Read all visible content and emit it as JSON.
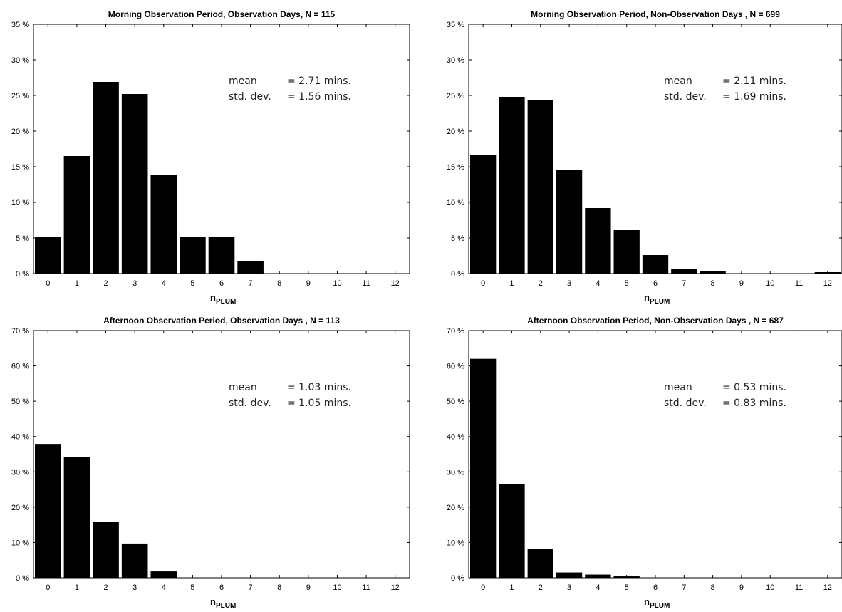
{
  "chart_data": [
    {
      "type": "bar",
      "title": "Morning Observation Period, Observation Days, N = 115",
      "xlabel_main": "n",
      "xlabel_sub": "PLUM",
      "ylabel": "",
      "categories": [
        "0",
        "1",
        "2",
        "3",
        "4",
        "5",
        "6",
        "7",
        "8",
        "9",
        "10",
        "11",
        "12"
      ],
      "values": [
        5.2,
        16.5,
        26.9,
        25.2,
        13.9,
        5.2,
        5.2,
        1.7,
        0,
        0,
        0,
        0,
        0
      ],
      "ylim": [
        0,
        35
      ],
      "yticks": [
        0,
        5,
        10,
        15,
        20,
        25,
        30,
        35
      ],
      "ytick_labels": [
        "0 %",
        "5 %",
        "10 %",
        "15 %",
        "20 %",
        "25 %",
        "30 %",
        "35 %"
      ],
      "stats": {
        "mean_label": "mean",
        "mean_value": "= 2.71 mins.",
        "std_label": "std. dev.",
        "std_value": "= 1.56 mins."
      }
    },
    {
      "type": "bar",
      "title": "Morning Observation Period, Non-Observation Days , N = 699",
      "xlabel_main": "n",
      "xlabel_sub": "PLUM",
      "ylabel": "",
      "categories": [
        "0",
        "1",
        "2",
        "3",
        "4",
        "5",
        "6",
        "7",
        "8",
        "9",
        "10",
        "11",
        "12"
      ],
      "values": [
        16.7,
        24.8,
        24.3,
        14.6,
        9.2,
        6.1,
        2.6,
        0.7,
        0.4,
        0,
        0,
        0,
        0.2
      ],
      "ylim": [
        0,
        35
      ],
      "yticks": [
        0,
        5,
        10,
        15,
        20,
        25,
        30,
        35
      ],
      "ytick_labels": [
        "0 %",
        "5 %",
        "10 %",
        "15 %",
        "20 %",
        "25 %",
        "30 %",
        "35 %"
      ],
      "stats": {
        "mean_label": "mean",
        "mean_value": "= 2.11 mins.",
        "std_label": "std. dev.",
        "std_value": "= 1.69 mins."
      }
    },
    {
      "type": "bar",
      "title": "Afternoon Observation Period, Observation Days , N = 113",
      "xlabel_main": "n",
      "xlabel_sub": "PLUM",
      "ylabel": "",
      "categories": [
        "0",
        "1",
        "2",
        "3",
        "4",
        "5",
        "6",
        "7",
        "8",
        "9",
        "10",
        "11",
        "12"
      ],
      "values": [
        37.9,
        34.2,
        15.9,
        9.7,
        1.8,
        0,
        0,
        0,
        0,
        0,
        0,
        0,
        0
      ],
      "ylim": [
        0,
        70
      ],
      "yticks": [
        0,
        10,
        20,
        30,
        40,
        50,
        60,
        70
      ],
      "ytick_labels": [
        "0 %",
        "10 %",
        "20 %",
        "30 %",
        "40 %",
        "50 %",
        "60 %",
        "70 %"
      ],
      "stats": {
        "mean_label": "mean",
        "mean_value": "= 1.03 mins.",
        "std_label": "std. dev.",
        "std_value": "= 1.05 mins."
      }
    },
    {
      "type": "bar",
      "title": "Afternoon Observation Period, Non-Observation Days , N = 687",
      "xlabel_main": "n",
      "xlabel_sub": "PLUM",
      "ylabel": "",
      "categories": [
        "0",
        "1",
        "2",
        "3",
        "4",
        "5",
        "6",
        "7",
        "8",
        "9",
        "10",
        "11",
        "12"
      ],
      "values": [
        62.0,
        26.5,
        8.2,
        1.5,
        0.9,
        0.4,
        0,
        0,
        0,
        0,
        0,
        0,
        0
      ],
      "ylim": [
        0,
        70
      ],
      "yticks": [
        0,
        10,
        20,
        30,
        40,
        50,
        60,
        70
      ],
      "ytick_labels": [
        "0 %",
        "10 %",
        "20 %",
        "30 %",
        "40 %",
        "50 %",
        "60 %",
        "70 %"
      ],
      "stats": {
        "mean_label": "mean",
        "mean_value": "= 0.53 mins.",
        "std_label": "std. dev.",
        "std_value": "= 0.83 mins."
      }
    }
  ]
}
